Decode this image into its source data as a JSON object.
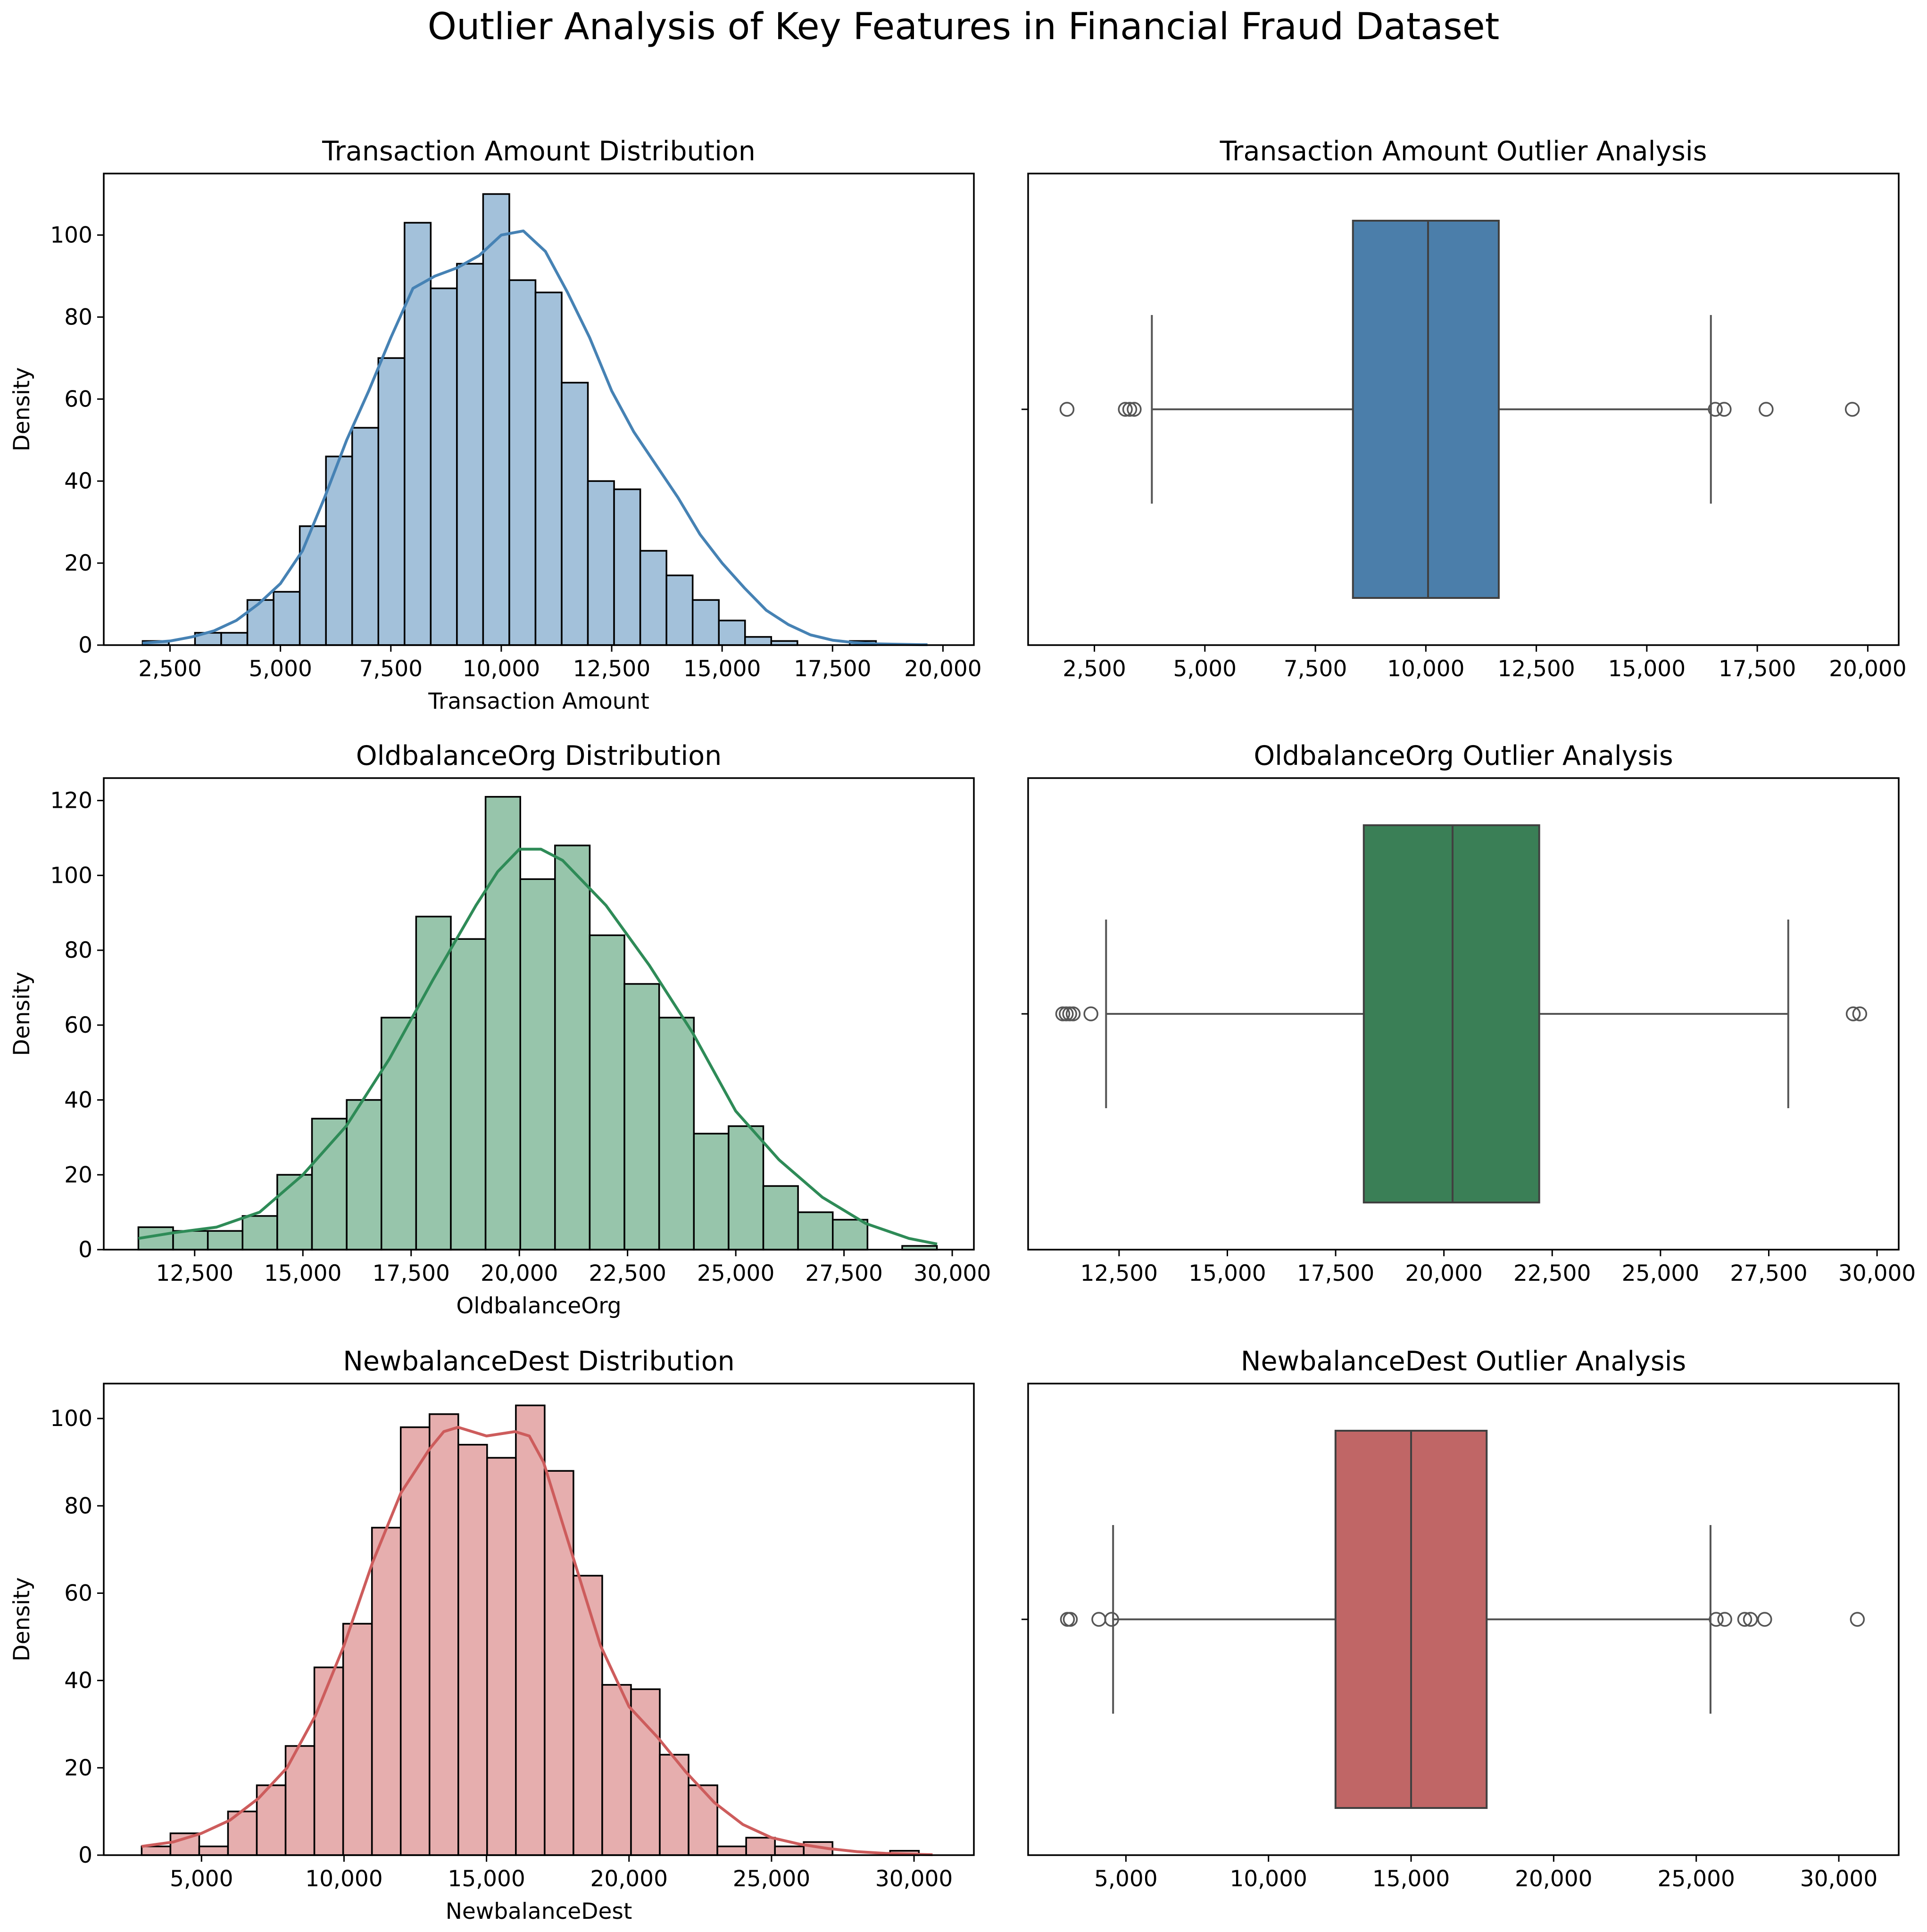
{
  "figure": {
    "title": "Outlier Analysis of Key Features in Financial Fraud Dataset"
  },
  "chart_data": [
    {
      "type": "bar",
      "subtype": "histogram-with-kde",
      "title": "Transaction Amount Distribution",
      "xlabel": "Transaction Amount",
      "ylabel": "Density",
      "color": "#4682b4",
      "xlim": [
        1000,
        20700
      ],
      "ylim": [
        0,
        115
      ],
      "xticks": [
        2500,
        5000,
        7500,
        10000,
        12500,
        15000,
        17500,
        20000
      ],
      "xtick_labels": [
        "2,500",
        "5,000",
        "7,500",
        "10,000",
        "12,500",
        "15,000",
        "17,500",
        "20,000"
      ],
      "yticks": [
        0,
        20,
        40,
        60,
        80,
        100
      ],
      "ytick_labels": [
        "0",
        "20",
        "40",
        "60",
        "80",
        "100"
      ],
      "bin_start": 1880,
      "bin_width": 593,
      "values": [
        1,
        0,
        3,
        3,
        11,
        13,
        29,
        46,
        53,
        70,
        103,
        87,
        93,
        110,
        89,
        86,
        64,
        40,
        38,
        23,
        17,
        11,
        6,
        2,
        1,
        0,
        0,
        1
      ],
      "kde": {
        "x": [
          1880,
          2500,
          3000,
          3500,
          4000,
          4500,
          5000,
          5500,
          6000,
          6500,
          7000,
          7500,
          8000,
          8500,
          9000,
          9500,
          10000,
          10500,
          11000,
          11500,
          12000,
          12500,
          13000,
          13500,
          14000,
          14500,
          15000,
          15500,
          16000,
          16500,
          17000,
          17500,
          18000,
          18500,
          19000,
          19500,
          19650
        ],
        "y": [
          0.5,
          1,
          2,
          3.5,
          6,
          10,
          15,
          23,
          36,
          50,
          62,
          75,
          87,
          90,
          92,
          95,
          100,
          101,
          96,
          86,
          75,
          62,
          52,
          44,
          36,
          27,
          20,
          14,
          8.5,
          5,
          2.5,
          1.2,
          0.6,
          0.3,
          0.2,
          0.1,
          0.1
        ]
      }
    },
    {
      "type": "boxplot",
      "title": "Transaction Amount Outlier Analysis",
      "color": "#4b7eaa",
      "xlim": [
        1000,
        20700
      ],
      "xticks": [
        2500,
        5000,
        7500,
        10000,
        12500,
        15000,
        17500,
        20000
      ],
      "xtick_labels": [
        "2,500",
        "5,000",
        "7,500",
        "10,000",
        "12,500",
        "15,000",
        "17,500",
        "20,000"
      ],
      "whisker_low": 3800,
      "q1": 8350,
      "median": 10050,
      "q3": 11650,
      "whisker_high": 16450,
      "outliers": [
        1880,
        3200,
        3300,
        3400,
        16550,
        16750,
        17700,
        19650
      ]
    },
    {
      "type": "bar",
      "subtype": "histogram-with-kde",
      "title": "OldbalanceOrg Distribution",
      "xlabel": "OldbalanceOrg",
      "ylabel": "Density",
      "color": "#2e8b57",
      "xlim": [
        10400,
        30500
      ],
      "ylim": [
        0,
        126
      ],
      "xticks": [
        12500,
        15000,
        17500,
        20000,
        22500,
        25000,
        27500,
        30000
      ],
      "xtick_labels": [
        "12,500",
        "15,000",
        "17,500",
        "20,000",
        "22,500",
        "25,000",
        "27,500",
        "30,000"
      ],
      "yticks": [
        0,
        20,
        40,
        60,
        80,
        100,
        120
      ],
      "ytick_labels": [
        "0",
        "20",
        "40",
        "60",
        "80",
        "100",
        "120"
      ],
      "bin_start": 11200,
      "bin_width": 802,
      "values": [
        6,
        5,
        5,
        9,
        20,
        35,
        40,
        62,
        89,
        83,
        121,
        99,
        108,
        84,
        71,
        62,
        31,
        33,
        17,
        10,
        8,
        0,
        1
      ],
      "kde": {
        "x": [
          11200,
          12000,
          13000,
          14000,
          15000,
          16000,
          17000,
          18000,
          19000,
          19500,
          20000,
          20500,
          21000,
          22000,
          23000,
          24000,
          25000,
          26000,
          27000,
          28000,
          29000,
          29650
        ],
        "y": [
          3,
          4.5,
          6,
          10,
          20,
          33,
          51,
          72,
          92,
          101,
          107,
          107,
          104,
          92,
          76,
          58,
          37,
          24,
          14,
          7,
          3,
          1.5
        ]
      }
    },
    {
      "type": "boxplot",
      "title": "OldbalanceOrg Outlier Analysis",
      "color": "#3a7f56",
      "xlim": [
        10400,
        30500
      ],
      "xticks": [
        12500,
        15000,
        17500,
        20000,
        22500,
        25000,
        27500,
        30000
      ],
      "xtick_labels": [
        "12,500",
        "15,000",
        "17,500",
        "20,000",
        "22,500",
        "25,000",
        "27,500",
        "30,000"
      ],
      "whisker_low": 12200,
      "q1": 18150,
      "median": 20200,
      "q3": 22200,
      "whisker_high": 27950,
      "outliers": [
        11200,
        11280,
        11360,
        11440,
        11850,
        29450,
        29600
      ]
    },
    {
      "type": "bar",
      "subtype": "histogram-with-kde",
      "title": "NewbalanceDest Distribution",
      "xlabel": "NewbalanceDest",
      "ylabel": "Density",
      "color": "#cd5c5c",
      "xlim": [
        1570,
        32100
      ],
      "ylim": [
        0,
        108
      ],
      "xticks": [
        5000,
        10000,
        15000,
        20000,
        25000,
        30000
      ],
      "xtick_labels": [
        "5,000",
        "10,000",
        "15,000",
        "20,000",
        "25,000",
        "30,000"
      ],
      "yticks": [
        0,
        20,
        40,
        60,
        80,
        100
      ],
      "ytick_labels": [
        "0",
        "20",
        "40",
        "60",
        "80",
        "100"
      ],
      "bin_start": 2900,
      "bin_width": 1010,
      "values": [
        2,
        5,
        2,
        10,
        16,
        25,
        43,
        53,
        75,
        98,
        101,
        94,
        91,
        103,
        88,
        64,
        39,
        38,
        23,
        16,
        2,
        4,
        2,
        3,
        0,
        0,
        1
      ],
      "kde": {
        "x": [
          2900,
          4000,
          5000,
          6000,
          7000,
          8000,
          9000,
          10000,
          11000,
          12000,
          13000,
          13500,
          14000,
          15000,
          16000,
          16500,
          17000,
          18000,
          19000,
          20000,
          21000,
          22000,
          23000,
          24000,
          25000,
          26000,
          27000,
          28000,
          29000,
          30000,
          30650
        ],
        "y": [
          2,
          3,
          5,
          8,
          13,
          20,
          32,
          48,
          67,
          83,
          93,
          97,
          98,
          96,
          97,
          96,
          90,
          69,
          48,
          34,
          27,
          19,
          12,
          7,
          4,
          2.5,
          1.5,
          0.8,
          0.4,
          0.2,
          0.1
        ]
      }
    },
    {
      "type": "boxplot",
      "title": "NewbalanceDest Outlier Analysis",
      "color": "#c06666",
      "xlim": [
        1570,
        32100
      ],
      "xticks": [
        5000,
        10000,
        15000,
        20000,
        25000,
        30000
      ],
      "xtick_labels": [
        "5,000",
        "10,000",
        "15,000",
        "20,000",
        "25,000",
        "30,000"
      ],
      "whisker_low": 4550,
      "q1": 12350,
      "median": 15000,
      "q3": 17650,
      "whisker_high": 25500,
      "outliers": [
        2950,
        3050,
        4050,
        4500,
        25700,
        26000,
        26700,
        26900,
        27400,
        30650
      ]
    }
  ]
}
